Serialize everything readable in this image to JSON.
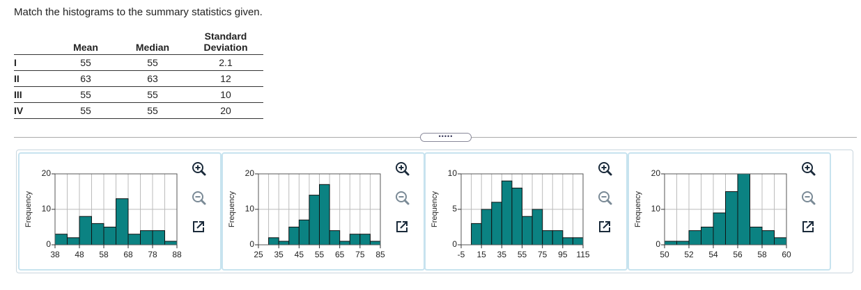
{
  "instruction": "Match the histograms to the summary statistics given.",
  "table": {
    "columns": [
      "Mean",
      "Median",
      "Standard Deviation"
    ],
    "rows": [
      [
        "I",
        55,
        55,
        2.1
      ],
      [
        "II",
        63,
        63,
        12
      ],
      [
        "III",
        55,
        55,
        10
      ],
      [
        "IV",
        55,
        55,
        20
      ]
    ]
  },
  "chart_data": [
    {
      "type": "histogram",
      "ylabel": "Frequency",
      "color": "#0b8282",
      "grid": true,
      "bins": [
        38,
        43,
        48,
        53,
        58,
        63,
        68,
        73,
        78,
        83,
        88
      ],
      "values": [
        3,
        2,
        8,
        6,
        5,
        13,
        3,
        4,
        4,
        1
      ],
      "xlim": [
        38,
        88
      ],
      "xticks": [
        38,
        48,
        58,
        68,
        78,
        88
      ],
      "ylim": [
        0,
        20
      ],
      "yticks": [
        0,
        10,
        20
      ]
    },
    {
      "type": "histogram",
      "ylabel": "Frequency",
      "color": "#0b8282",
      "grid": true,
      "bins": [
        25,
        30,
        35,
        40,
        45,
        50,
        55,
        60,
        65,
        70,
        75,
        80,
        85
      ],
      "values": [
        0,
        2,
        1,
        5,
        7,
        14,
        17,
        4,
        1,
        3,
        3,
        1
      ],
      "xlim": [
        25,
        85
      ],
      "xticks": [
        25,
        35,
        45,
        55,
        65,
        75,
        85
      ],
      "ylim": [
        0,
        20
      ],
      "yticks": [
        0,
        10,
        20
      ]
    },
    {
      "type": "histogram",
      "ylabel": "Frequency",
      "color": "#0b8282",
      "grid": true,
      "bins": [
        -5,
        5,
        15,
        25,
        35,
        45,
        55,
        65,
        75,
        85,
        95,
        105,
        115
      ],
      "values": [
        0,
        3,
        5,
        6,
        9,
        8,
        4,
        5,
        2,
        2,
        1,
        1
      ],
      "xlim": [
        -5,
        115
      ],
      "xticks": [
        -5,
        15,
        35,
        55,
        75,
        95,
        115
      ],
      "ylim": [
        0,
        10
      ],
      "yticks": [
        0,
        5,
        10
      ]
    },
    {
      "type": "histogram",
      "ylabel": "Frequency",
      "color": "#0b8282",
      "grid": true,
      "bins": [
        50,
        51,
        52,
        53,
        54,
        55,
        56,
        57,
        58,
        59,
        60
      ],
      "values": [
        1,
        1,
        4,
        5,
        9,
        15,
        20,
        5,
        4,
        2
      ],
      "xlim": [
        50,
        60
      ],
      "xticks": [
        50,
        52,
        54,
        56,
        58,
        60
      ],
      "ylim": [
        0,
        20
      ],
      "yticks": [
        0,
        10,
        20
      ]
    }
  ]
}
